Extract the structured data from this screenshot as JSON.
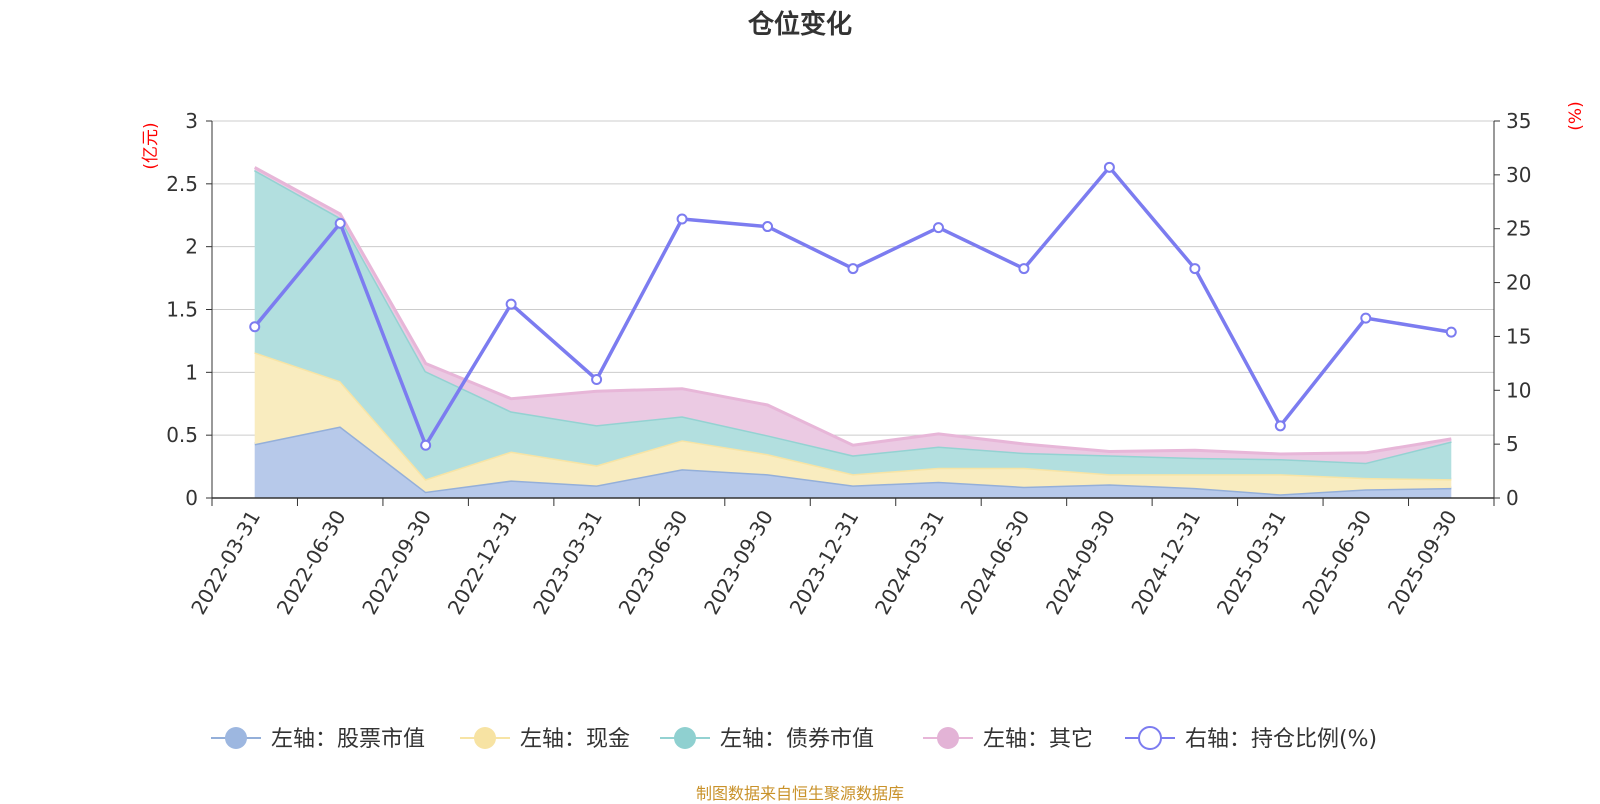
{
  "title": "仓位变化",
  "source": "制图数据来自恒生聚源数据库",
  "chart_data": {
    "type": "area",
    "categories": [
      "2022-03-31",
      "2022-06-30",
      "2022-09-30",
      "2022-12-31",
      "2023-03-31",
      "2023-06-30",
      "2023-09-30",
      "2023-12-31",
      "2024-03-31",
      "2024-06-30",
      "2024-09-30",
      "2024-12-31",
      "2025-03-31",
      "2025-06-30",
      "2025-09-30"
    ],
    "left_axis": {
      "unit": "(亿元)",
      "ylim": [
        0,
        3
      ],
      "ticks": [
        "0",
        "0.5",
        "1",
        "1.5",
        "2",
        "2.5",
        "3"
      ]
    },
    "right_axis": {
      "unit": "(%)",
      "ylim": [
        0,
        35
      ],
      "ticks": [
        "0",
        "5",
        "10",
        "15",
        "20",
        "25",
        "30",
        "35"
      ]
    },
    "grid": true,
    "legend_position": "bottom",
    "series": [
      {
        "name": "左轴：股票市值",
        "axis": "left",
        "stack": true,
        "line_color": "#94afd9",
        "fill_color": "#b7c9ea",
        "values": [
          0.43,
          0.57,
          0.05,
          0.14,
          0.1,
          0.23,
          0.19,
          0.1,
          0.13,
          0.09,
          0.11,
          0.08,
          0.03,
          0.07,
          0.08
        ]
      },
      {
        "name": "左轴：现金",
        "axis": "left",
        "stack": true,
        "line_color": "#f7e4a5",
        "fill_color": "#f9ecbf",
        "values": [
          0.73,
          0.36,
          0.1,
          0.23,
          0.16,
          0.23,
          0.16,
          0.09,
          0.11,
          0.15,
          0.08,
          0.11,
          0.16,
          0.09,
          0.07
        ]
      },
      {
        "name": "左轴：债券市值",
        "axis": "left",
        "stack": true,
        "line_color": "#94d2d2",
        "fill_color": "#b2dfdf",
        "values": [
          1.45,
          1.3,
          0.86,
          0.32,
          0.32,
          0.19,
          0.15,
          0.15,
          0.17,
          0.12,
          0.15,
          0.13,
          0.12,
          0.12,
          0.3
        ]
      },
      {
        "name": "左轴：其它",
        "axis": "left",
        "stack": true,
        "line_color": "#e7b6d8",
        "fill_color": "#ebcae3",
        "values": [
          0.02,
          0.03,
          0.06,
          0.1,
          0.27,
          0.22,
          0.24,
          0.08,
          0.1,
          0.07,
          0.03,
          0.06,
          0.04,
          0.08,
          0.02
        ]
      },
      {
        "name": "右轴：持仓比例(%)",
        "axis": "right",
        "type": "line",
        "line_color": "#7c7cf0",
        "values": [
          15.9,
          25.5,
          4.9,
          18.0,
          11.0,
          25.9,
          25.2,
          21.3,
          25.1,
          21.3,
          30.7,
          21.3,
          6.7,
          16.7,
          15.4
        ]
      }
    ]
  }
}
